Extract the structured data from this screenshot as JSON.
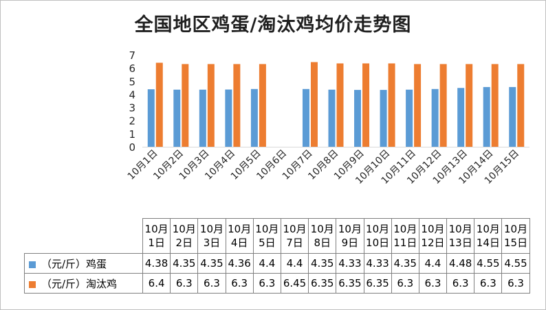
{
  "chart_data": {
    "type": "bar",
    "title": "全国地区鸡蛋/淘汰鸡均价走势图",
    "categories": [
      "10月1日",
      "10月2日",
      "10月3日",
      "10月4日",
      "10月5日",
      "10月6日",
      "10月7日",
      "10月8日",
      "10月9日",
      "10月10日",
      "10月11日",
      "10月12日",
      "10月13日",
      "10月14日",
      "10月15日"
    ],
    "series": [
      {
        "name": "（元/斤）鸡蛋",
        "color": "#5b9bd5",
        "values": [
          4.38,
          4.35,
          4.35,
          4.36,
          4.4,
          null,
          4.4,
          4.35,
          4.33,
          4.33,
          4.35,
          4.4,
          4.48,
          4.55,
          4.55
        ]
      },
      {
        "name": "（元/斤）淘汰鸡",
        "color": "#ed7d31",
        "values": [
          6.4,
          6.3,
          6.3,
          6.3,
          6.3,
          null,
          6.45,
          6.35,
          6.35,
          6.35,
          6.3,
          6.3,
          6.3,
          6.3,
          6.3
        ]
      }
    ],
    "ylim": [
      0,
      7
    ],
    "yticks": [
      0,
      1,
      2,
      3,
      4,
      5,
      6,
      7
    ],
    "grid": false,
    "legend": "data-table"
  },
  "table": {
    "header": [
      [
        "10月",
        "1日"
      ],
      [
        "10月",
        "2日"
      ],
      [
        "10月",
        "3日"
      ],
      [
        "10月",
        "4日"
      ],
      [
        "10月",
        "5日"
      ],
      [
        "10月",
        "7日"
      ],
      [
        "10月",
        "8日"
      ],
      [
        "10月",
        "9日"
      ],
      [
        "10月",
        "10日"
      ],
      [
        "10月",
        "11日"
      ],
      [
        "10月",
        "12日"
      ],
      [
        "10月",
        "13日"
      ],
      [
        "10月",
        "14日"
      ],
      [
        "10月",
        "15日"
      ]
    ],
    "rows": [
      {
        "label": "（元/斤）鸡蛋",
        "color": "#5b9bd5",
        "cells": [
          "4.38",
          "4.35",
          "4.35",
          "4.36",
          "4.4",
          "4.4",
          "4.35",
          "4.33",
          "4.33",
          "4.35",
          "4.4",
          "4.48",
          "4.55",
          "4.55"
        ]
      },
      {
        "label": "（元/斤）淘汰鸡",
        "color": "#ed7d31",
        "cells": [
          "6.4",
          "6.3",
          "6.3",
          "6.3",
          "6.3",
          "6.45",
          "6.35",
          "6.35",
          "6.35",
          "6.3",
          "6.3",
          "6.3",
          "6.3",
          "6.3"
        ]
      }
    ]
  }
}
